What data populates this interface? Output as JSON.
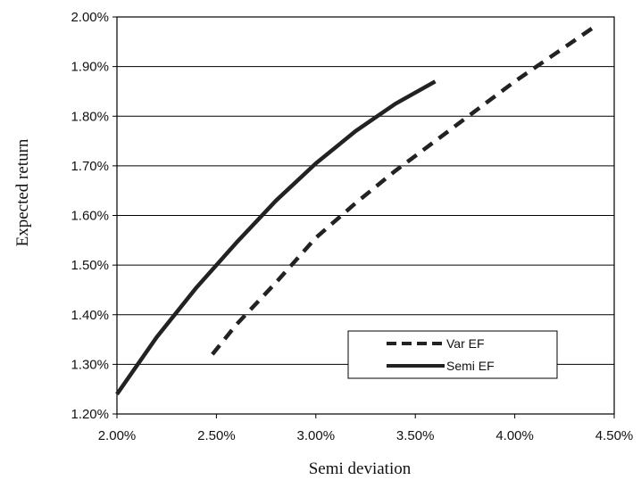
{
  "chart_data": {
    "type": "line",
    "xlabel": "Semi deviation",
    "ylabel": "Expected return",
    "xlim": [
      2.0,
      4.5
    ],
    "ylim": [
      1.2,
      2.0
    ],
    "x_ticks": [
      "2.00%",
      "2.50%",
      "3.00%",
      "3.50%",
      "4.00%",
      "4.50%"
    ],
    "y_ticks": [
      "1.20%",
      "1.30%",
      "1.40%",
      "1.50%",
      "1.60%",
      "1.70%",
      "1.80%",
      "1.90%",
      "2.00%"
    ],
    "grid": "horizontal",
    "legend": "bottom-right",
    "series": [
      {
        "name": "Var EF",
        "style": "dashed",
        "color": "#222222",
        "x": [
          2.48,
          2.6,
          2.8,
          3.0,
          3.2,
          3.4,
          3.6,
          3.8,
          4.0,
          4.2,
          4.4
        ],
        "y": [
          1.32,
          1.38,
          1.465,
          1.555,
          1.625,
          1.69,
          1.75,
          1.81,
          1.87,
          1.925,
          1.98
        ]
      },
      {
        "name": "Semi EF",
        "style": "solid",
        "color": "#222222",
        "x": [
          2.0,
          2.2,
          2.4,
          2.6,
          2.8,
          3.0,
          3.2,
          3.4,
          3.6
        ],
        "y": [
          1.24,
          1.355,
          1.455,
          1.545,
          1.63,
          1.705,
          1.77,
          1.825,
          1.87
        ]
      }
    ]
  }
}
